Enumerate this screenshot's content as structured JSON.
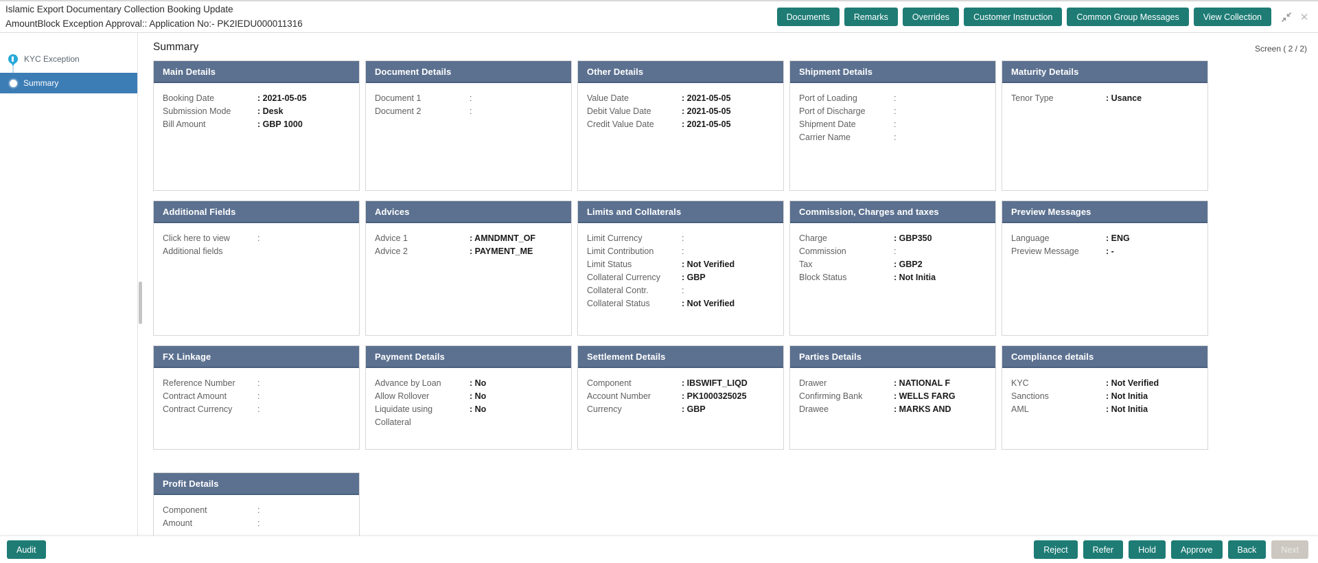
{
  "colors": {
    "accent_teal": "#1e7c75",
    "card_header_bg": "#5c7190",
    "card_header_border": "#475e7d",
    "active_step_bg": "#3d7db5",
    "kyc_step_icon": "#29a9d9",
    "disabled_button_bg": "#ccc8c1",
    "disabled_button_text": "#edebe6"
  },
  "header": {
    "title_line1": "Islamic Export Documentary Collection Booking Update",
    "title_line2": "AmountBlock Exception Approval:: Application No:- PK2IEDU000011316",
    "buttons": [
      "Documents",
      "Remarks",
      "Overrides",
      "Customer Instruction",
      "Common Group Messages",
      "View Collection"
    ],
    "window_icons": [
      {
        "name": "collapse-icon"
      },
      {
        "name": "close-icon",
        "glyph": "✕"
      }
    ],
    "close_glyph": "✕"
  },
  "sidebar": {
    "steps": [
      {
        "label": "KYC Exception",
        "active": false
      },
      {
        "label": "Summary",
        "active": true
      }
    ]
  },
  "main": {
    "heading": "Summary",
    "screen_indicator": "Screen ( 2 / 2)",
    "card_rows": [
      [
        {
          "title": "Main Details",
          "fields": [
            {
              "label": "Booking Date",
              "value": "2021-05-05"
            },
            {
              "label": "Submission Mode",
              "value": "Desk"
            },
            {
              "label": "Bill Amount",
              "value": "GBP 1000"
            }
          ]
        },
        {
          "title": "Document Details",
          "fields": [
            {
              "label": "Document 1",
              "value": ""
            },
            {
              "label": "Document 2",
              "value": ""
            }
          ]
        },
        {
          "title": "Other Details",
          "fields": [
            {
              "label": "Value Date",
              "value": "2021-05-05"
            },
            {
              "label": "Debit Value Date",
              "value": "2021-05-05"
            },
            {
              "label": "Credit Value Date",
              "value": "2021-05-05"
            }
          ]
        },
        {
          "title": "Shipment Details",
          "fields": [
            {
              "label": "Port of Loading",
              "value": ""
            },
            {
              "label": "Port of Discharge",
              "value": ""
            },
            {
              "label": "Shipment Date",
              "value": ""
            },
            {
              "label": "Carrier Name",
              "value": ""
            }
          ]
        },
        {
          "title": "Maturity Details",
          "fields": [
            {
              "label": "Tenor Type",
              "value": "Usance"
            }
          ]
        }
      ],
      [
        {
          "title": "Additional Fields",
          "fields": [
            {
              "label": "Click here to view Additional fields",
              "value": "",
              "link": true
            }
          ]
        },
        {
          "title": "Advices",
          "fields": [
            {
              "label": "Advice 1",
              "value": "AMNDMNT_OF"
            },
            {
              "label": "Advice 2",
              "value": "PAYMENT_ME"
            }
          ]
        },
        {
          "title": "Limits and Collaterals",
          "fields": [
            {
              "label": "Limit Currency",
              "value": ""
            },
            {
              "label": "Limit Contribution",
              "value": ""
            },
            {
              "label": "Limit Status",
              "value": "Not Verified"
            },
            {
              "label": "Collateral Currency",
              "value": "GBP"
            },
            {
              "label": "Collateral Contr.",
              "value": ""
            },
            {
              "label": "Collateral Status",
              "value": "Not Verified"
            }
          ]
        },
        {
          "title": "Commission, Charges and taxes",
          "fields": [
            {
              "label": "Charge",
              "value": "GBP350"
            },
            {
              "label": "Commission",
              "value": ""
            },
            {
              "label": "Tax",
              "value": "GBP2"
            },
            {
              "label": "Block Status",
              "value": "Not Initia"
            }
          ]
        },
        {
          "title": "Preview Messages",
          "fields": [
            {
              "label": "Language",
              "value": "ENG"
            },
            {
              "label": "Preview Message",
              "value": "-"
            }
          ]
        }
      ],
      [
        {
          "title": "FX Linkage",
          "fields": [
            {
              "label": "Reference Number",
              "value": ""
            },
            {
              "label": "Contract Amount",
              "value": ""
            },
            {
              "label": "Contract Currency",
              "value": ""
            }
          ]
        },
        {
          "title": "Payment Details",
          "fields": [
            {
              "label": "Advance by Loan",
              "value": "No"
            },
            {
              "label": "Allow Rollover",
              "value": "No"
            },
            {
              "label": "Liquidate using Collateral",
              "value": "No"
            }
          ]
        },
        {
          "title": "Settlement Details",
          "fields": [
            {
              "label": "Component",
              "value": "IBSWIFT_LIQD"
            },
            {
              "label": "Account Number",
              "value": "PK1000325025"
            },
            {
              "label": "Currency",
              "value": "GBP"
            }
          ]
        },
        {
          "title": "Parties Details",
          "fields": [
            {
              "label": "Drawer",
              "value": "NATIONAL F"
            },
            {
              "label": "Confirming Bank",
              "value": "WELLS FARG"
            },
            {
              "label": "Drawee",
              "value": "MARKS AND"
            }
          ]
        },
        {
          "title": "Compliance details",
          "fields": [
            {
              "label": "KYC",
              "value": "Not Verified"
            },
            {
              "label": "Sanctions",
              "value": "Not Initia"
            },
            {
              "label": "AML",
              "value": "Not Initia"
            }
          ]
        }
      ],
      [
        {
          "title": "Profit Details",
          "fields": [
            {
              "label": "Component",
              "value": ""
            },
            {
              "label": "Amount",
              "value": ""
            }
          ]
        }
      ]
    ]
  },
  "footer": {
    "audit_label": "Audit",
    "actions": [
      {
        "label": "Reject",
        "enabled": true
      },
      {
        "label": "Refer",
        "enabled": true
      },
      {
        "label": "Hold",
        "enabled": true
      },
      {
        "label": "Approve",
        "enabled": true
      },
      {
        "label": "Back",
        "enabled": true
      },
      {
        "label": "Next",
        "enabled": false
      }
    ]
  }
}
